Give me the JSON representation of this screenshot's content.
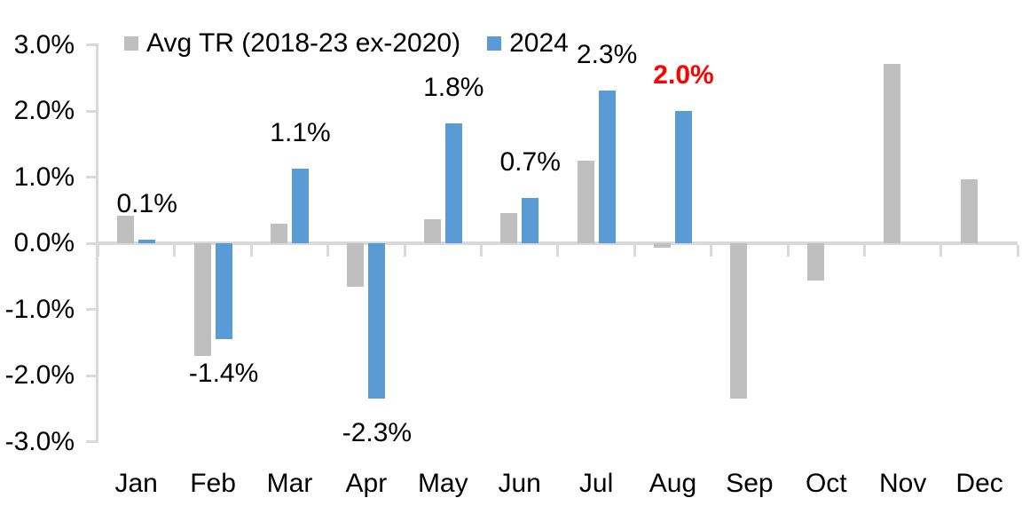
{
  "colors": {
    "series_avg": "#BFBFBF",
    "series_2024": "#5B9BD5",
    "axis": "#D9D9D9",
    "text": "#000000",
    "highlight_label": "#FF0000",
    "background": "#FFFFFF"
  },
  "legend": {
    "position": "top",
    "items": [
      {
        "label": "Avg TR (2018-23 ex-2020)",
        "swatch": "gray-square"
      },
      {
        "label": "2024",
        "swatch": "blue-square"
      }
    ]
  },
  "chart_data": {
    "type": "bar",
    "title": "",
    "xlabel": "",
    "ylabel": "",
    "grid": false,
    "legend_position": "top",
    "categories": [
      "Jan",
      "Feb",
      "Mar",
      "Apr",
      "May",
      "Jun",
      "Jul",
      "Aug",
      "Sep",
      "Oct",
      "Nov",
      "Dec"
    ],
    "series": [
      {
        "name": "Avg TR (2018-23 ex-2020)",
        "color": "#BFBFBF",
        "values": [
          0.42,
          -1.71,
          0.3,
          -0.66,
          0.36,
          0.46,
          1.25,
          -0.07,
          -2.35,
          -0.56,
          2.71,
          0.96
        ]
      },
      {
        "name": "2024",
        "color": "#5B9BD5",
        "values": [
          0.05,
          -1.45,
          1.13,
          -2.35,
          1.81,
          0.69,
          2.31,
          2.0,
          null,
          null,
          null,
          null
        ],
        "labels": [
          {
            "text": "0.1%",
            "highlight": false
          },
          {
            "text": "-1.4%",
            "highlight": false
          },
          {
            "text": "1.1%",
            "highlight": false
          },
          {
            "text": "-2.3%",
            "highlight": false
          },
          {
            "text": "1.8%",
            "highlight": false
          },
          {
            "text": "0.7%",
            "highlight": false
          },
          {
            "text": "2.3%",
            "highlight": false
          },
          {
            "text": "2.0%",
            "highlight": true
          },
          null,
          null,
          null,
          null
        ]
      }
    ],
    "ylim": [
      -3,
      3
    ],
    "yticks": [
      {
        "value": 3,
        "label": "3.0%"
      },
      {
        "value": 2,
        "label": "2.0%"
      },
      {
        "value": 1,
        "label": "1.0%"
      },
      {
        "value": 0,
        "label": "0.0%"
      },
      {
        "value": -1,
        "label": "-1.0%"
      },
      {
        "value": -2,
        "label": "-2.0%"
      },
      {
        "value": -3,
        "label": "-3.0%"
      }
    ]
  }
}
